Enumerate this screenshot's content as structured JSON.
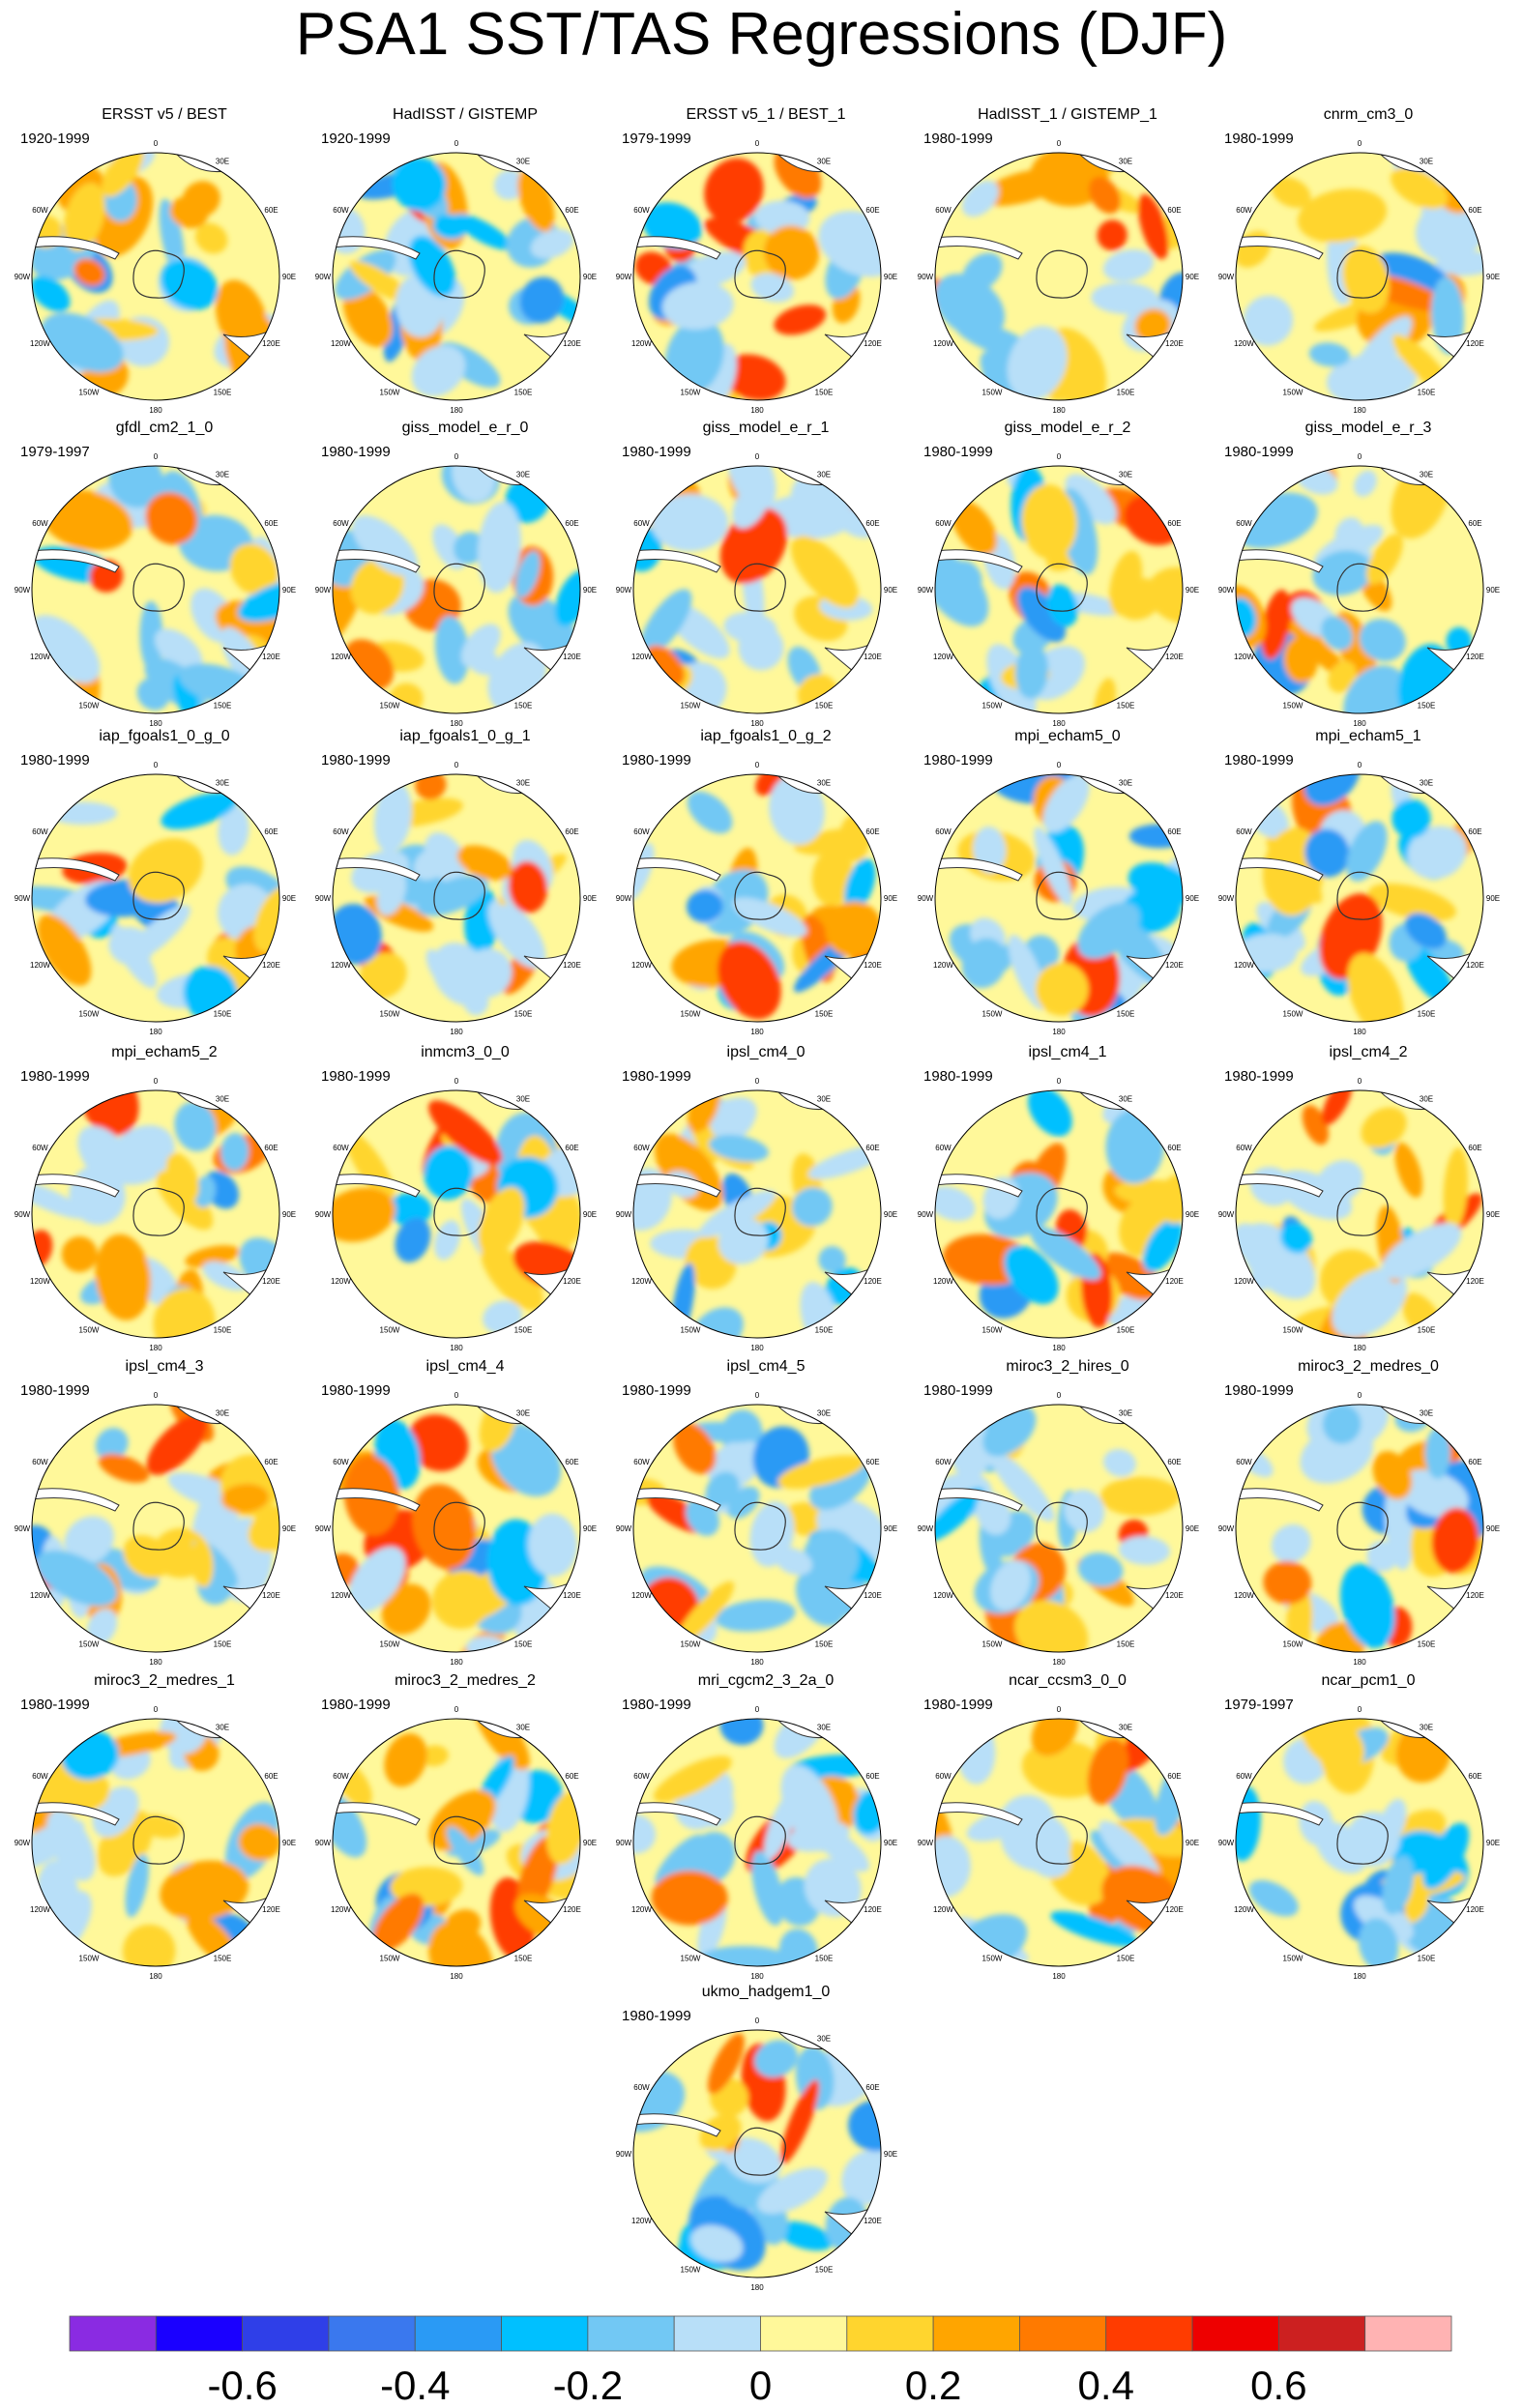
{
  "title": "PSA1 SST/TAS Regressions (DJF)",
  "panels": [
    {
      "name": "ERSST v5 / BEST",
      "period": "1920-1999"
    },
    {
      "name": "HadISST / GISTEMP",
      "period": "1920-1999"
    },
    {
      "name": "ERSST v5_1 / BEST_1",
      "period": "1979-1999"
    },
    {
      "name": "HadISST_1 / GISTEMP_1",
      "period": "1980-1999"
    },
    {
      "name": "cnrm_cm3_0",
      "period": "1980-1999"
    },
    {
      "name": "gfdl_cm2_1_0",
      "period": "1979-1997"
    },
    {
      "name": "giss_model_e_r_0",
      "period": "1980-1999"
    },
    {
      "name": "giss_model_e_r_1",
      "period": "1980-1999"
    },
    {
      "name": "giss_model_e_r_2",
      "period": "1980-1999"
    },
    {
      "name": "giss_model_e_r_3",
      "period": "1980-1999"
    },
    {
      "name": "iap_fgoals1_0_g_0",
      "period": "1980-1999"
    },
    {
      "name": "iap_fgoals1_0_g_1",
      "period": "1980-1999"
    },
    {
      "name": "iap_fgoals1_0_g_2",
      "period": "1980-1999"
    },
    {
      "name": "mpi_echam5_0",
      "period": "1980-1999"
    },
    {
      "name": "mpi_echam5_1",
      "period": "1980-1999"
    },
    {
      "name": "mpi_echam5_2",
      "period": "1980-1999"
    },
    {
      "name": "inmcm3_0_0",
      "period": "1980-1999"
    },
    {
      "name": "ipsl_cm4_0",
      "period": "1980-1999"
    },
    {
      "name": "ipsl_cm4_1",
      "period": "1980-1999"
    },
    {
      "name": "ipsl_cm4_2",
      "period": "1980-1999"
    },
    {
      "name": "ipsl_cm4_3",
      "period": "1980-1999"
    },
    {
      "name": "ipsl_cm4_4",
      "period": "1980-1999"
    },
    {
      "name": "ipsl_cm4_5",
      "period": "1980-1999"
    },
    {
      "name": "miroc3_2_hires_0",
      "period": "1980-1999"
    },
    {
      "name": "miroc3_2_medres_0",
      "period": "1980-1999"
    },
    {
      "name": "miroc3_2_medres_1",
      "period": "1980-1999"
    },
    {
      "name": "miroc3_2_medres_2",
      "period": "1980-1999"
    },
    {
      "name": "mri_cgcm2_3_2a_0",
      "period": "1980-1999"
    },
    {
      "name": "ncar_ccsm3_0_0",
      "period": "1980-1999"
    },
    {
      "name": "ncar_pcm1_0",
      "period": "1979-1997"
    },
    {
      "name": "ukmo_hadgem1_0",
      "period": "1980-1999"
    }
  ],
  "map_labels": {
    "top": "0",
    "right_top": "30E",
    "right_upper": "60E",
    "right_mid": "90E",
    "right_lower": "120E",
    "right_bottom": "150E",
    "bottom": "180",
    "left_bottom": "150W",
    "left_lower": "120W",
    "left_mid": "90W",
    "left_upper": "60W"
  },
  "colorbar": {
    "colors": [
      "#8a2be2",
      "#1a00ff",
      "#2f3fe8",
      "#3a78ee",
      "#2a9af5",
      "#00c0ff",
      "#72c8f4",
      "#b8dff8",
      "#fff89a",
      "#ffd52e",
      "#ffa500",
      "#ff7a00",
      "#ff3c00",
      "#ee0000",
      "#cc2020",
      "#ffb3b3"
    ],
    "tick_labels": [
      "-0.6",
      "-0.4",
      "-0.2",
      "0",
      "0.2",
      "0.4",
      "0.6"
    ]
  },
  "chart_data": {
    "type": "heatmap",
    "title": "PSA1 SST/TAS Regressions (DJF)",
    "projection": "south polar stereographic",
    "panel_count": 31,
    "color_levels": [
      -0.7,
      -0.6,
      -0.5,
      -0.4,
      -0.3,
      -0.2,
      -0.1,
      0,
      0.1,
      0.2,
      0.3,
      0.4,
      0.5,
      0.6,
      0.7
    ],
    "colorbar_ticks": [
      -0.6,
      -0.4,
      -0.2,
      0,
      0.2,
      0.4,
      0.6
    ]
  }
}
